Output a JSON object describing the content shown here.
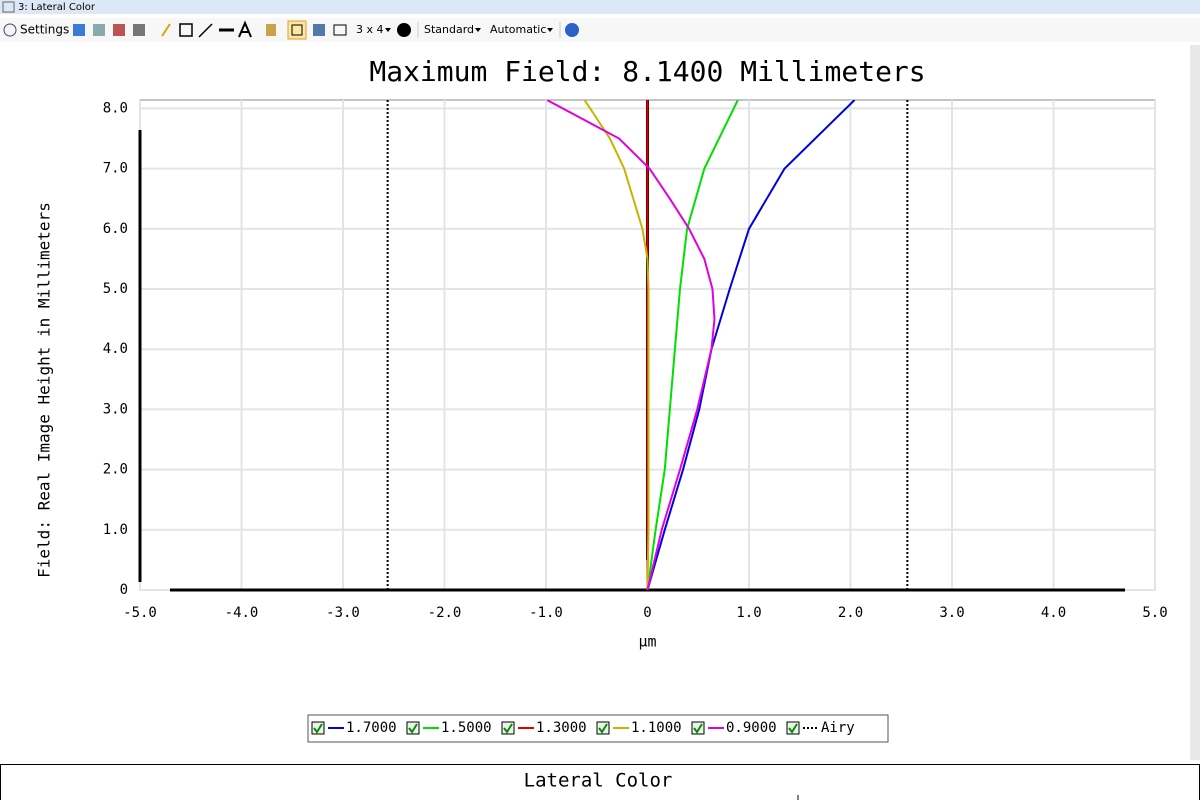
{
  "window": {
    "title": "3: Lateral Color"
  },
  "toolbar": {
    "settings": "Settings",
    "layout": "3 x 4",
    "standard": "Standard",
    "automatic": "Automatic"
  },
  "chart_data": {
    "type": "line",
    "title": "Maximum Field: 8.1400 Millimeters",
    "x_label": "µm",
    "y_label": "Field: Real Image Height in Millimeters",
    "xlim": [
      -5,
      5
    ],
    "xticks": [
      {
        "value": -5,
        "label": "-5.0"
      },
      {
        "value": -4,
        "label": "-4.0"
      },
      {
        "value": -3,
        "label": "-3.0"
      },
      {
        "value": -2,
        "label": "-2.0"
      },
      {
        "value": -1,
        "label": "-1.0"
      },
      0,
      {
        "value": 1,
        "label": "1.0"
      },
      {
        "value": 2,
        "label": "2.0"
      },
      {
        "value": 3,
        "label": "3.0"
      },
      {
        "value": 4,
        "label": "4.0"
      },
      {
        "value": 5,
        "label": "5.0"
      }
    ],
    "ylim": [
      0,
      8.14
    ],
    "yticks": [
      0,
      {
        "value": 1,
        "label": "1.0"
      },
      {
        "value": 2,
        "label": "2.0"
      },
      {
        "value": 3,
        "label": "3.0"
      },
      {
        "value": 4,
        "label": "4.0"
      },
      {
        "value": 5,
        "label": "5.0"
      },
      {
        "value": 6,
        "label": "6.0"
      },
      {
        "value": 7,
        "label": "7.0"
      },
      {
        "value": 8,
        "label": "8.0"
      }
    ],
    "grid": true,
    "series": [
      {
        "name": "1.7000",
        "color": "#0000e0",
        "x": [
          0,
          0.17,
          0.35,
          0.51,
          0.63,
          0.81,
          1.0,
          1.35,
          2.04
        ],
        "values": [
          0,
          1,
          2,
          3,
          4,
          5,
          6,
          7,
          8.14
        ]
      },
      {
        "name": "1.5000",
        "color": "#00e000",
        "x": [
          0,
          0.08,
          0.17,
          0.22,
          0.27,
          0.32,
          0.39,
          0.56,
          0.89
        ],
        "values": [
          0,
          1,
          2,
          3,
          4,
          5,
          6,
          7,
          8.14
        ]
      },
      {
        "name": "1.3000",
        "color": "#e00000",
        "x": [
          0,
          0,
          0,
          0,
          0,
          0,
          0,
          0,
          0
        ],
        "values": [
          0,
          1,
          2,
          3,
          4,
          5,
          6,
          7,
          8.14
        ]
      },
      {
        "name": "1.1000",
        "color": "#c8b400",
        "x": [
          0,
          0.01,
          0.01,
          0.01,
          0.01,
          0.01,
          0,
          -0.05,
          -0.23,
          -0.37,
          -0.62
        ],
        "values": [
          0,
          1,
          2,
          3,
          4,
          5,
          5.5,
          6,
          7,
          7.5,
          8.14
        ]
      },
      {
        "name": "0.9000",
        "color": "#e000e0",
        "x": [
          0,
          0.14,
          0.32,
          0.49,
          0.63,
          0.66,
          0.64,
          0.56,
          0.41,
          0.22,
          0.02,
          -0.28,
          -0.99
        ],
        "values": [
          0,
          1,
          2,
          3,
          4,
          4.5,
          5,
          5.5,
          6,
          6.5,
          7,
          7.5,
          8.14
        ]
      },
      {
        "name": "Airy",
        "color": "#000000",
        "style": "dotted",
        "x": [
          -2.56,
          -2.56,
          null,
          2.56,
          2.56
        ],
        "values": [
          0,
          8.14,
          null,
          0,
          8.14
        ]
      }
    ]
  },
  "footer": {
    "title": "Lateral Color"
  }
}
